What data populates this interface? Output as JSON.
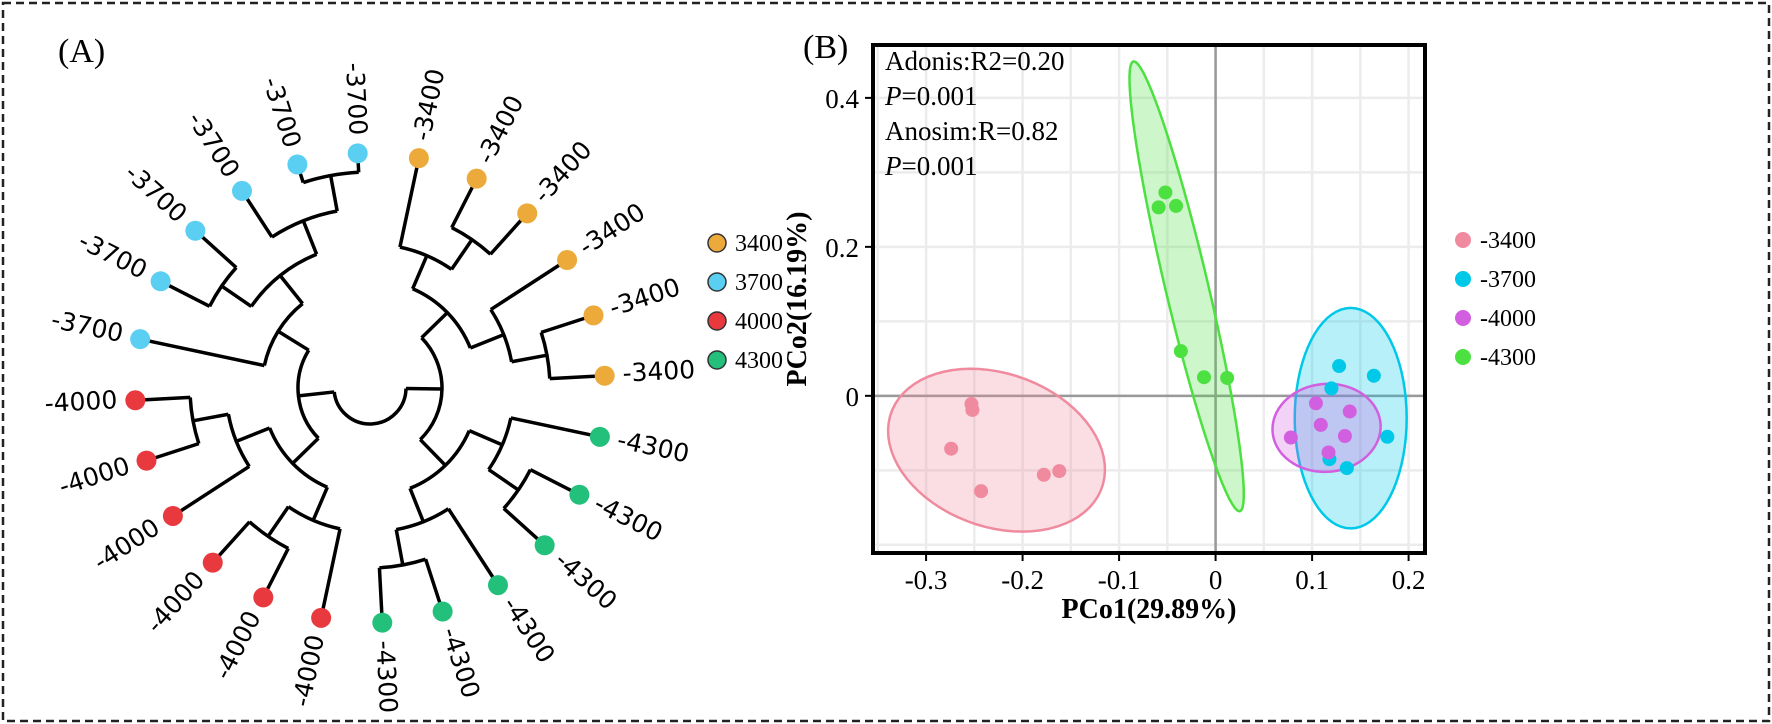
{
  "panel_a": {
    "label": "(A)",
    "legend": [
      {
        "label": "3400",
        "color": "#EBAA3A"
      },
      {
        "label": "3700",
        "color": "#5BCFF2"
      },
      {
        "label": "4000",
        "color": "#E8393F"
      },
      {
        "label": "4300",
        "color": "#22C07A"
      }
    ]
  },
  "panel_b": {
    "label": "(B)",
    "stats": {
      "adonis": "Adonis:R2=0.20",
      "p_symbol": "P",
      "adonis_p": "=0.001",
      "anosim": "Anosim:R=0.82",
      "anosim_p": "=0.001"
    }
  },
  "chart_data": [
    {
      "type": "dendrogram",
      "layout": "circular",
      "groups": {
        "-3400": "#EBAA3A",
        "-3700": "#5BCFF2",
        "-4000": "#E8393F",
        "-4300": "#22C07A"
      },
      "leaves": [
        "-3400",
        "-3400",
        "-3400",
        "-3400",
        "-3400",
        "-3400",
        "-4300",
        "-4300",
        "-4300",
        "-4300",
        "-4300",
        "-4300",
        "-4000",
        "-4000",
        "-4000",
        "-4000",
        "-4000",
        "-4000",
        "-3700",
        "-3700",
        "-3700",
        "-3700",
        "-3700",
        "-3700"
      ],
      "tree": [
        [
          [
            [
              0,
              [
                1,
                2
              ]
            ],
            [
              3,
              [
                4,
                5
              ]
            ]
          ],
          [
            [
              6,
              [
                7,
                8
              ]
            ],
            [
              9,
              [
                10,
                11
              ]
            ]
          ]
        ],
        [
          [
            [
              12,
              [
                13,
                14
              ]
            ],
            [
              15,
              [
                16,
                17
              ]
            ]
          ],
          [
            18,
            [
              [
                19,
                20
              ],
              [
                21,
                [
                  22,
                  23
                ]
              ]
            ]
          ]
        ]
      ]
    },
    {
      "type": "scatter",
      "xlabel": "PCo1(29.89%)",
      "ylabel": "PCo2(16.19%)",
      "xlim": [
        -0.355,
        0.217
      ],
      "ylim": [
        -0.211,
        0.471
      ],
      "xticks": [
        -0.3,
        -0.2,
        -0.1,
        0,
        0.1,
        0.2
      ],
      "xtick_labels": [
        "-0.3",
        "-0.2",
        "-0.1",
        "0",
        "0.1",
        "0.2"
      ],
      "yticks": [
        0,
        0.2,
        0.4
      ],
      "ytick_labels": [
        "0",
        "0.2",
        "0.4"
      ],
      "grid": true,
      "legend_position": "right",
      "series": [
        {
          "name": "-3400",
          "color": "#F08A9E",
          "points": [
            [
              -0.253,
              -0.011
            ],
            [
              -0.252,
              -0.019
            ],
            [
              -0.274,
              -0.071
            ],
            [
              -0.243,
              -0.128
            ],
            [
              -0.178,
              -0.106
            ],
            [
              -0.162,
              -0.101
            ]
          ],
          "ellipse": {
            "center": [
              -0.227,
              -0.073
            ],
            "axis1": [
              0.105,
              -0.062
            ],
            "axis2": [
              0.04,
              0.09
            ]
          }
        },
        {
          "name": "-3700",
          "color": "#00C8E8",
          "points": [
            [
              0.128,
              0.04
            ],
            [
              0.164,
              0.027
            ],
            [
              0.12,
              0.01
            ],
            [
              0.118,
              -0.085
            ],
            [
              0.136,
              -0.097
            ],
            [
              0.178,
              -0.055
            ]
          ],
          "ellipse": {
            "center": [
              0.14,
              -0.03
            ],
            "axis1": [
              0,
              0.148
            ],
            "axis2": [
              0.058,
              0
            ]
          }
        },
        {
          "name": "-4000",
          "color": "#D25FE0",
          "points": [
            [
              0.104,
              -0.01
            ],
            [
              0.139,
              -0.021
            ],
            [
              0.109,
              -0.039
            ],
            [
              0.078,
              -0.056
            ],
            [
              0.134,
              -0.054
            ],
            [
              0.117,
              -0.076
            ]
          ],
          "ellipse": {
            "center": [
              0.115,
              -0.043
            ],
            "axis1": [
              0.056,
              0.004
            ],
            "axis2": [
              -0.002,
              0.059
            ]
          }
        },
        {
          "name": "-4300",
          "color": "#4CE040",
          "points": [
            [
              -0.052,
              0.273
            ],
            [
              -0.059,
              0.253
            ],
            [
              -0.041,
              0.255
            ],
            [
              -0.036,
              0.06
            ],
            [
              -0.012,
              0.025
            ],
            [
              0.012,
              0.024
            ]
          ],
          "ellipse": {
            "center": [
              -0.03,
              0.147
            ],
            "axis1": [
              0.055,
              -0.302
            ],
            "axis2": [
              0.022,
              0.004
            ]
          }
        }
      ]
    }
  ]
}
